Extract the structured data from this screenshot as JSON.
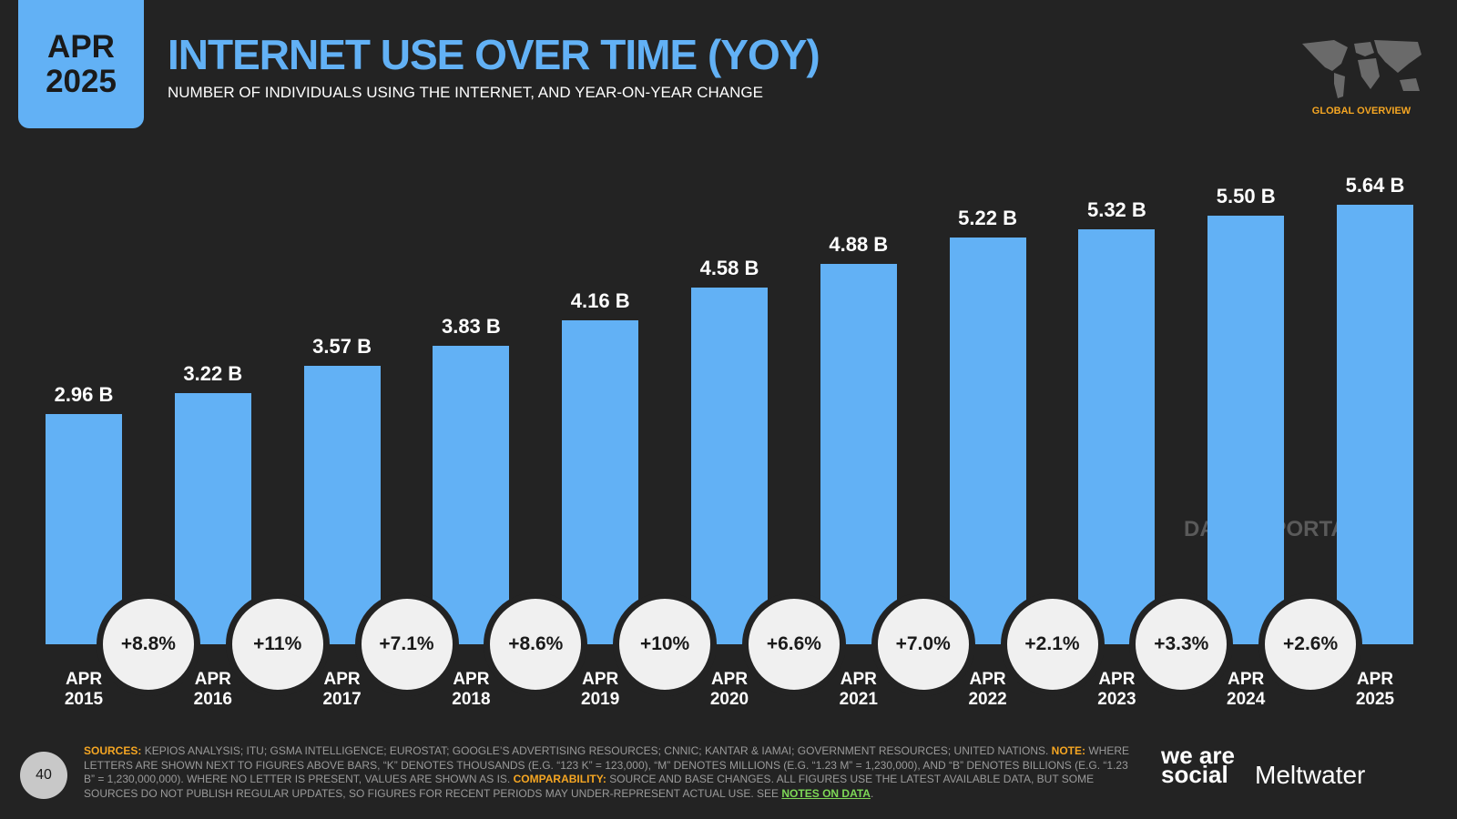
{
  "badge": "APR 2025",
  "header": {
    "title": "INTERNET USE OVER TIME (YOY)",
    "subtitle": "NUMBER OF INDIVIDUALS USING THE INTERNET, AND YEAR-ON-YEAR CHANGE",
    "section": "GLOBAL OVERVIEW"
  },
  "watermark": "DATAREPORTAL",
  "chart_data": {
    "type": "bar",
    "categories": [
      "APR 2015",
      "APR 2016",
      "APR 2017",
      "APR 2018",
      "APR 2019",
      "APR 2020",
      "APR 2021",
      "APR 2022",
      "APR 2023",
      "APR 2024",
      "APR 2025"
    ],
    "values": [
      2.96,
      3.22,
      3.57,
      3.83,
      4.16,
      4.58,
      4.88,
      5.22,
      5.32,
      5.5,
      5.64
    ],
    "value_labels": [
      "2.96 B",
      "3.22 B",
      "3.57 B",
      "3.83 B",
      "4.16 B",
      "4.58 B",
      "4.88 B",
      "5.22 B",
      "5.32 B",
      "5.50 B",
      "5.64 B"
    ],
    "color": "#62b1f5",
    "changes": {
      "values": [
        8.8,
        11,
        7.1,
        8.6,
        10,
        6.6,
        7.0,
        2.1,
        3.3,
        2.6
      ],
      "value_labels": [
        "+8.8%",
        "+11%",
        "+7.1%",
        "+8.6%",
        "+10%",
        "+6.6%",
        "+7.0%",
        "+2.1%",
        "+3.3%",
        "+2.6%"
      ]
    }
  },
  "footer": {
    "page": "40",
    "segments": [
      {
        "text": "SOURCES:",
        "color": "#f5a623"
      },
      {
        "text": "KEPIOS ANALYSIS; ITU; GSMA INTELLIGENCE; EUROSTAT; GOOGLE’S ADVERTISING RESOURCES; CNNIC; KANTAR & IAMAI; GOVERNMENT RESOURCES; UNITED NATIONS.",
        "color": "#9a9a9a"
      },
      {
        "text": "NOTE:",
        "color": "#f5a623"
      },
      {
        "text": "WHERE LETTERS ARE SHOWN NEXT TO FIGURES ABOVE BARS, “K” DENOTES THOUSANDS (E.G. “123 K” = 123,000), “M” DENOTES MILLIONS (E.G. “1.23 M” = 1,230,000), AND “B” DENOTES BILLIONS (E.G. “1.23 B” = 1,230,000,000). WHERE NO LETTER IS PRESENT, VALUES ARE SHOWN AS IS.",
        "color": "#9a9a9a"
      },
      {
        "text": "COMPARABILITY:",
        "color": "#f5a623"
      },
      {
        "text": "SOURCE AND BASE CHANGES. ALL FIGURES USE THE LATEST AVAILABLE DATA, BUT SOME SOURCES DO NOT PUBLISH REGULAR UPDATES, SO FIGURES FOR RECENT PERIODS MAY UNDER-REPRESENT ACTUAL USE. SEE",
        "color": "#9a9a9a"
      },
      {
        "text": "NOTES ON DATA",
        "color": "#7ed957"
      },
      {
        "text": ".",
        "color": "#9a9a9a"
      }
    ],
    "brand1": "we are social",
    "brand2": "Meltwater"
  }
}
